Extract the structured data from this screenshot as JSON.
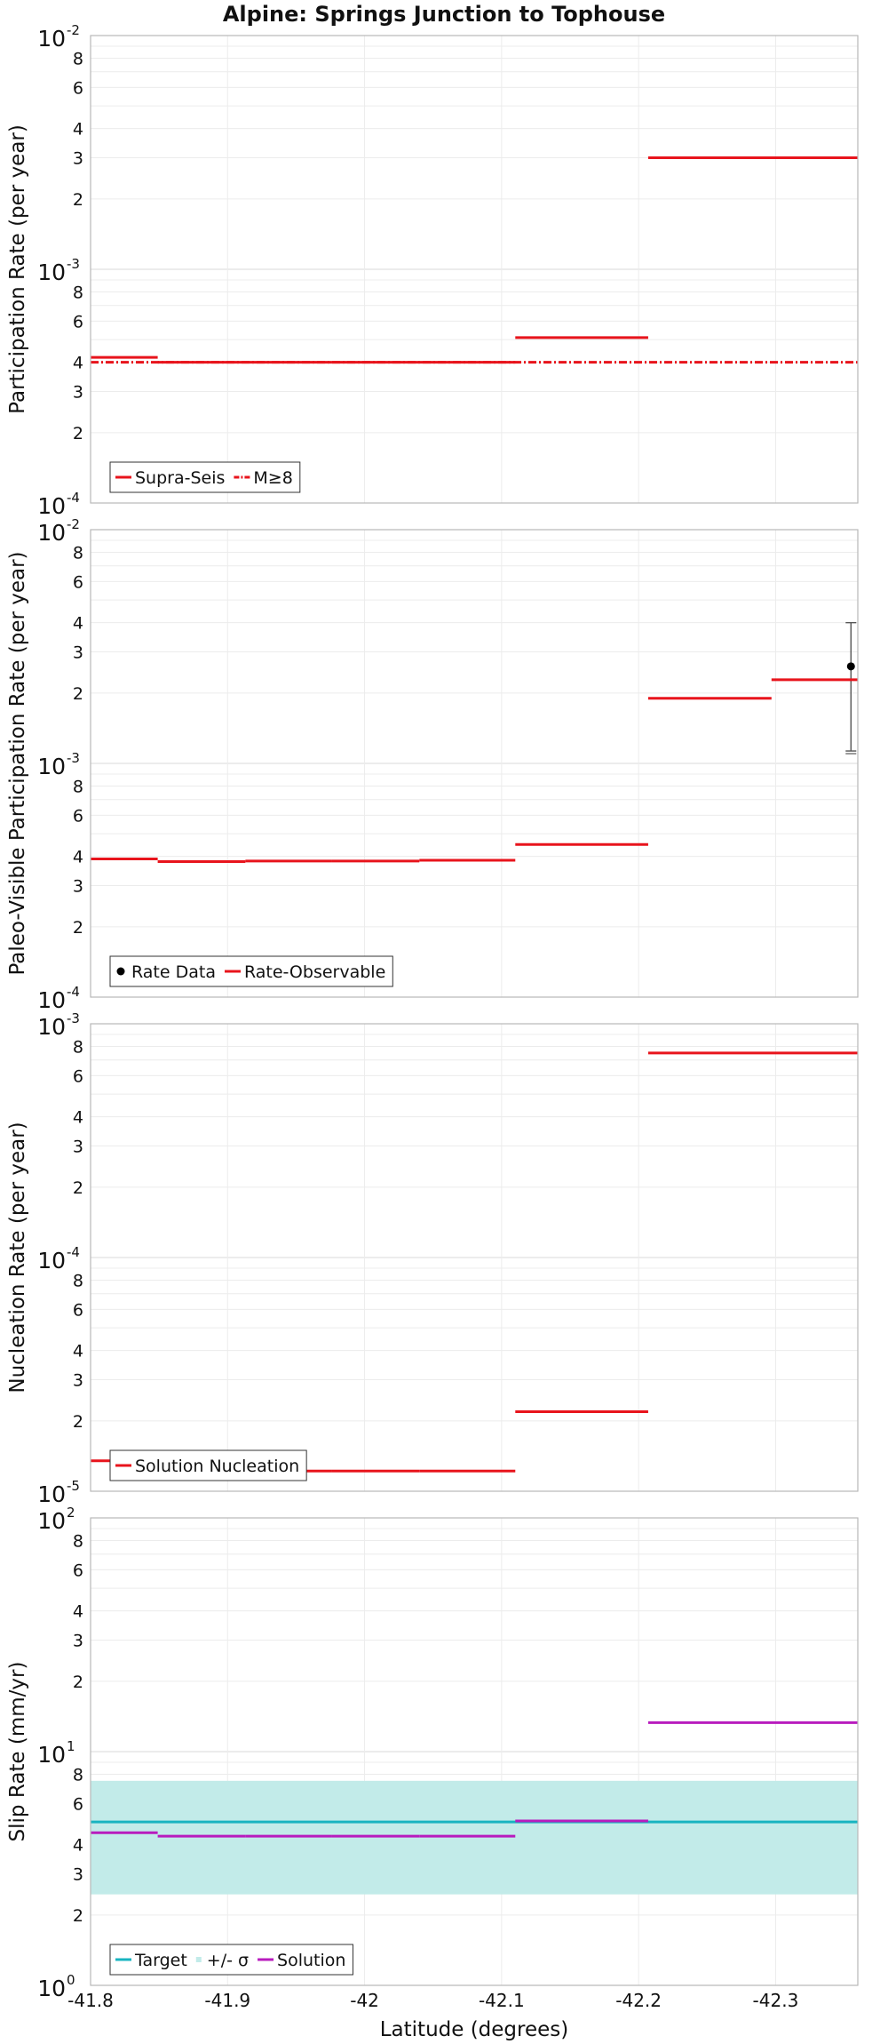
{
  "chart_data": {
    "title": "Alpine: Springs Junction to Tophouse",
    "xlabel": "Latitude (degrees)",
    "xlim": [
      -41.8,
      -42.36
    ],
    "xticks": [
      -41.8,
      -41.9,
      -42.0,
      -42.1,
      -42.2,
      -42.3
    ],
    "xtick_labels": [
      "-41.8",
      "-41.9",
      "-42",
      "-42.1",
      "-42.2",
      "-42.3"
    ],
    "panels": [
      {
        "type": "line",
        "ylabel": "Participation Rate (per year)",
        "yscale": "log",
        "ylim": [
          0.0001,
          0.01
        ],
        "grid": true,
        "legend_position": "bottom-left",
        "series": [
          {
            "name": "Supra-Seis",
            "color": "#e8141c",
            "style": "solid",
            "segments": [
              {
                "x": [
                  -41.8,
                  -41.849
                ],
                "y": 0.00042
              },
              {
                "x": [
                  -41.849,
                  -41.913
                ],
                "y": 0.0004
              },
              {
                "x": [
                  -41.913,
                  -41.976
                ],
                "y": 0.0004
              },
              {
                "x": [
                  -41.976,
                  -42.04
                ],
                "y": 0.0004
              },
              {
                "x": [
                  -42.04,
                  -42.11
                ],
                "y": 0.0004
              },
              {
                "x": [
                  -42.11,
                  -42.207
                ],
                "y": 0.00051
              },
              {
                "x": [
                  -42.207,
                  -42.36
                ],
                "y": 0.003
              }
            ]
          },
          {
            "name": "M≥8",
            "color": "#e8141c",
            "style": "dashdot",
            "segments": [
              {
                "x": [
                  -41.8,
                  -42.36
                ],
                "y": 0.0004
              }
            ]
          }
        ]
      },
      {
        "type": "line",
        "ylabel": "Paleo-Visible Participation Rate (per year)",
        "yscale": "log",
        "ylim": [
          0.0001,
          0.01
        ],
        "grid": true,
        "legend_position": "bottom-left",
        "series": [
          {
            "name": "Rate Data",
            "color": "#000000",
            "style": "point",
            "points": [
              {
                "x": -42.355,
                "y": 0.0026,
                "lower": 0.00113,
                "upper": 0.004
              }
            ]
          },
          {
            "name": "Rate-Observable",
            "color": "#e8141c",
            "style": "solid",
            "segments": [
              {
                "x": [
                  -41.8,
                  -41.849
                ],
                "y": 0.00039
              },
              {
                "x": [
                  -41.849,
                  -41.913
                ],
                "y": 0.00038
              },
              {
                "x": [
                  -41.913,
                  -41.976
                ],
                "y": 0.000382
              },
              {
                "x": [
                  -41.976,
                  -42.04
                ],
                "y": 0.000382
              },
              {
                "x": [
                  -42.04,
                  -42.11
                ],
                "y": 0.000385
              },
              {
                "x": [
                  -42.11,
                  -42.207
                ],
                "y": 0.00045
              },
              {
                "x": [
                  -42.207,
                  -42.297
                ],
                "y": 0.0019
              },
              {
                "x": [
                  -42.297,
                  -42.36
                ],
                "y": 0.00228
              }
            ]
          }
        ]
      },
      {
        "type": "line",
        "ylabel": "Nucleation Rate (per year)",
        "yscale": "log",
        "ylim": [
          1e-05,
          0.001
        ],
        "grid": true,
        "legend_position": "bottom-left",
        "series": [
          {
            "name": "Solution Nucleation",
            "color": "#e8141c",
            "style": "solid",
            "segments": [
              {
                "x": [
                  -41.8,
                  -41.849
                ],
                "y": 1.35e-05
              },
              {
                "x": [
                  -41.849,
                  -41.913
                ],
                "y": 1.23e-05
              },
              {
                "x": [
                  -41.913,
                  -41.976
                ],
                "y": 1.22e-05
              },
              {
                "x": [
                  -41.976,
                  -42.04
                ],
                "y": 1.22e-05
              },
              {
                "x": [
                  -42.04,
                  -42.11
                ],
                "y": 1.22e-05
              },
              {
                "x": [
                  -42.11,
                  -42.207
                ],
                "y": 2.19e-05
              },
              {
                "x": [
                  -42.207,
                  -42.36
                ],
                "y": 0.00075
              }
            ]
          }
        ]
      },
      {
        "type": "line",
        "ylabel": "Slip Rate (mm/yr)",
        "yscale": "log",
        "ylim": [
          1,
          100
        ],
        "grid": true,
        "legend_position": "bottom-left",
        "series": [
          {
            "name": "Target",
            "color": "#18b4c0",
            "style": "solid",
            "segments": [
              {
                "x": [
                  -41.8,
                  -42.36
                ],
                "y": 5.0
              }
            ]
          },
          {
            "name": "+/- σ",
            "color": "#c2ebe9",
            "style": "band",
            "band": {
              "x": [
                -41.8,
                -42.36
              ],
              "lower": 2.45,
              "upper": 7.5
            }
          },
          {
            "name": "Solution",
            "color": "#b81cbe",
            "style": "solid",
            "segments": [
              {
                "x": [
                  -41.8,
                  -41.849
                ],
                "y": 4.5
              },
              {
                "x": [
                  -41.849,
                  -41.913
                ],
                "y": 4.35
              },
              {
                "x": [
                  -41.913,
                  -41.976
                ],
                "y": 4.35
              },
              {
                "x": [
                  -41.976,
                  -42.04
                ],
                "y": 4.35
              },
              {
                "x": [
                  -42.04,
                  -42.11
                ],
                "y": 4.35
              },
              {
                "x": [
                  -42.11,
                  -42.207
                ],
                "y": 5.05
              },
              {
                "x": [
                  -42.207,
                  -42.36
                ],
                "y": 13.3
              }
            ]
          }
        ]
      }
    ]
  }
}
